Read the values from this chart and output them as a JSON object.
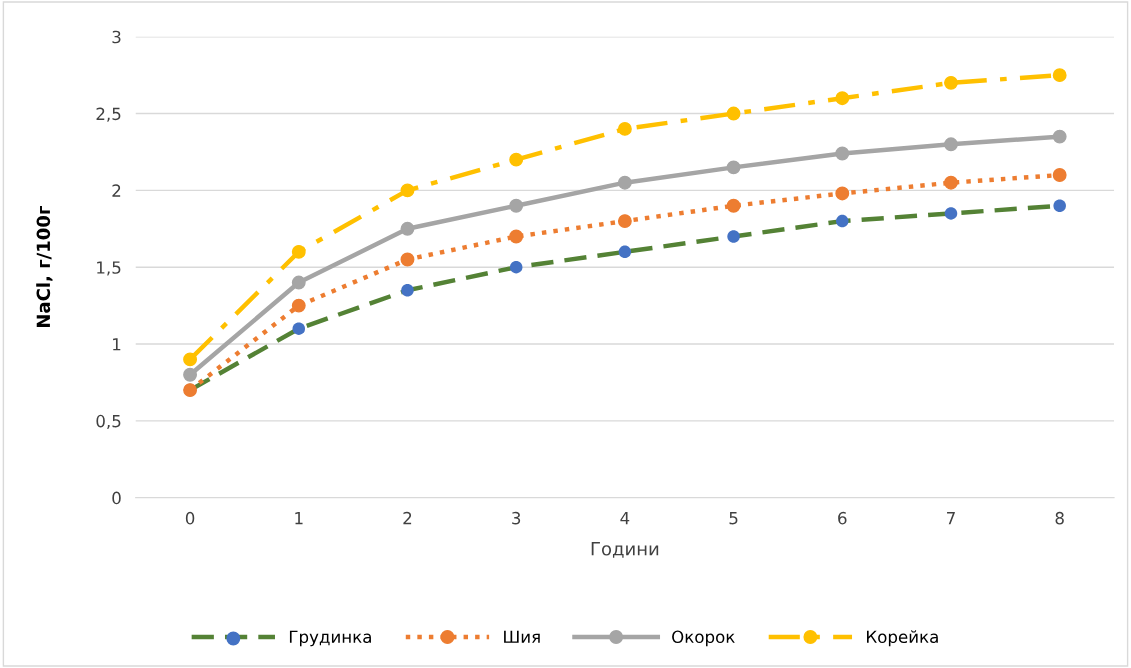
{
  "chart_data": {
    "type": "line",
    "xlabel": "Години",
    "ylabel": "NaCl, г/100г",
    "categories": [
      "0",
      "1",
      "2",
      "3",
      "4",
      "5",
      "6",
      "7",
      "8"
    ],
    "series": [
      {
        "name": "Грудинка",
        "color": "#548235",
        "colors": [
          "#4472c4",
          "#4472c4",
          "#4472c4",
          "#4472c4",
          "#4472c4",
          "#4472c4",
          "#4472c4",
          "#4472c4",
          "#4472c4"
        ],
        "line_style": "dashed",
        "values": [
          0.7,
          1.1,
          1.35,
          1.5,
          1.6,
          1.7,
          1.8,
          1.85,
          1.9
        ]
      },
      {
        "name": "Шия",
        "color": "#ed7d31",
        "line_style": "dotted",
        "values": [
          0.7,
          1.25,
          1.55,
          1.7,
          1.8,
          1.9,
          1.98,
          2.05,
          2.1
        ]
      },
      {
        "name": "Окорок",
        "color": "#a5a5a5",
        "line_style": "solid",
        "values": [
          0.8,
          1.4,
          1.75,
          1.9,
          2.05,
          2.15,
          2.24,
          2.3,
          2.35
        ]
      },
      {
        "name": "Корейка",
        "color": "#ffc000",
        "line_style": "dashdot",
        "values": [
          0.9,
          1.6,
          2.0,
          2.2,
          2.4,
          2.5,
          2.6,
          2.7,
          2.75
        ]
      }
    ],
    "ylim": [
      0,
      3
    ],
    "yticks": [
      {
        "value": 0,
        "label": "0"
      },
      {
        "value": 0.5,
        "label": "0,5"
      },
      {
        "value": 1,
        "label": "1"
      },
      {
        "value": 1.5,
        "label": "1,5"
      },
      {
        "value": 2,
        "label": "2"
      },
      {
        "value": 2.5,
        "label": "2,5"
      },
      {
        "value": 3,
        "label": "3"
      }
    ],
    "grid": "y",
    "legend": "bottom",
    "marker": "circle"
  }
}
